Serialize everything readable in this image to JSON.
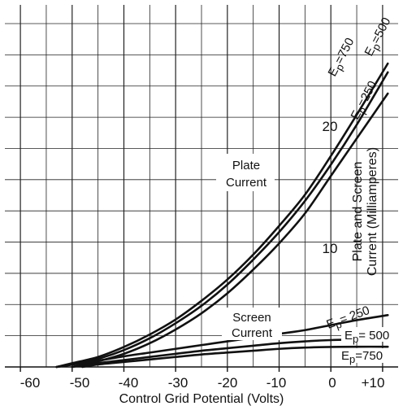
{
  "chart_data": {
    "type": "line",
    "title": "",
    "xlabel": "Control Grid Potential (Volts)",
    "ylabel": "Plate and Screen Current (Milliamperes)",
    "ylabel_lines": [
      "Plate and Screen",
      "Current (Milliamperes)"
    ],
    "xlim": [
      -63,
      13
    ],
    "ylim": [
      0,
      29
    ],
    "grid": true,
    "x_ticks": [
      {
        "value": -60,
        "label": "-60"
      },
      {
        "value": -50,
        "label": "-50"
      },
      {
        "value": -40,
        "label": "-40"
      },
      {
        "value": -30,
        "label": "-30"
      },
      {
        "value": -20,
        "label": "-20"
      },
      {
        "value": -10,
        "label": "-10"
      },
      {
        "value": 0,
        "label": "0"
      },
      {
        "value": 10,
        "label": "+10"
      }
    ],
    "y_ticks": [
      {
        "value": 10,
        "label": "10"
      },
      {
        "value": 20,
        "label": "20"
      }
    ],
    "annotations": {
      "plate_current": [
        "Plate",
        "Current"
      ],
      "screen_current": [
        "Screen",
        "Current"
      ]
    },
    "series": [
      {
        "name": "Ep=750",
        "group": "plate",
        "label_main": "E",
        "label_sub": "p",
        "label_value": "=750",
        "x": [
          -53,
          -50,
          -45,
          -40,
          -35,
          -30,
          -25,
          -20,
          -15,
          -10,
          -5,
          0,
          5,
          11
        ],
        "y": [
          0,
          0.3,
          0.8,
          1.6,
          2.6,
          3.8,
          5.3,
          7.0,
          9.0,
          11.3,
          13.8,
          16.9,
          20.2,
          24.3
        ]
      },
      {
        "name": "Ep=500",
        "group": "plate",
        "label_main": "E",
        "label_sub": "p",
        "label_value": "=500",
        "x": [
          -53,
          -50,
          -45,
          -40,
          -35,
          -30,
          -25,
          -20,
          -15,
          -10,
          -5,
          0,
          5,
          11
        ],
        "y": [
          0,
          0.2,
          0.65,
          1.35,
          2.3,
          3.5,
          4.9,
          6.6,
          8.6,
          10.8,
          13.3,
          16.2,
          19.4,
          23.6
        ]
      },
      {
        "name": "Ep=250",
        "group": "plate",
        "label_main": "E",
        "label_sub": "p",
        "label_value": "=250",
        "x": [
          -50,
          -45,
          -40,
          -35,
          -30,
          -25,
          -20,
          -15,
          -10,
          -5,
          0,
          5,
          11
        ],
        "y": [
          0,
          0.45,
          1.05,
          1.9,
          3.0,
          4.3,
          5.9,
          7.8,
          9.9,
          12.3,
          15.3,
          18.3,
          21.9
        ]
      },
      {
        "name": "Ep=250",
        "group": "screen",
        "label_main": "E",
        "label_sub": "p",
        "label_value": "= 250",
        "x": [
          -53,
          -45,
          -40,
          -35,
          -30,
          -25,
          -20,
          -15,
          -10,
          -5,
          0,
          5,
          11
        ],
        "y": [
          0,
          0.5,
          0.85,
          1.15,
          1.45,
          1.75,
          2.05,
          2.35,
          2.65,
          2.95,
          3.35,
          3.75,
          4.15
        ]
      },
      {
        "name": "Ep=500",
        "group": "screen",
        "label_main": "E",
        "label_sub": "p",
        "label_value": "= 500",
        "x": [
          -50,
          -45,
          -40,
          -35,
          -30,
          -25,
          -20,
          -15,
          -10,
          -5,
          0,
          5,
          11
        ],
        "y": [
          0,
          0.3,
          0.55,
          0.8,
          1.05,
          1.3,
          1.5,
          1.7,
          1.9,
          2.05,
          2.15,
          2.2,
          2.25
        ]
      },
      {
        "name": "Ep=750",
        "group": "screen",
        "label_main": "E",
        "label_sub": "p",
        "label_value": "=750",
        "x": [
          -48,
          -45,
          -40,
          -35,
          -30,
          -25,
          -20,
          -15,
          -10,
          -5,
          0,
          5,
          11
        ],
        "y": [
          0,
          0.2,
          0.4,
          0.6,
          0.8,
          1.0,
          1.15,
          1.3,
          1.45,
          1.55,
          1.6,
          1.62,
          1.62
        ]
      }
    ]
  }
}
